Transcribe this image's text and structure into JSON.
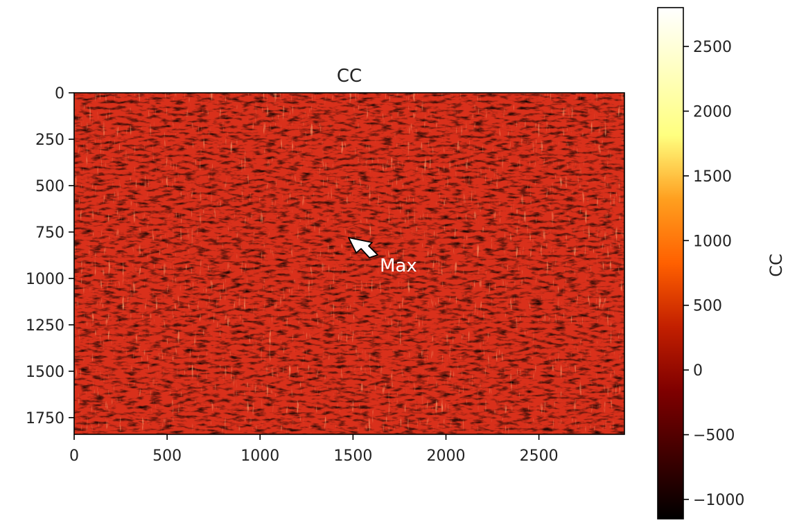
{
  "chart_data": {
    "type": "heatmap",
    "title": "CC",
    "colormap": "afmhot",
    "x_extent": [
      0,
      2960
    ],
    "y_extent": [
      0,
      1840
    ],
    "y_inverted": true,
    "x_ticks": [
      "0",
      "500",
      "1000",
      "1500",
      "2000",
      "2500"
    ],
    "x_tick_values": [
      0,
      500,
      1000,
      1500,
      2000,
      2500
    ],
    "y_ticks": [
      "0",
      "250",
      "500",
      "750",
      "1000",
      "1250",
      "1500",
      "1750"
    ],
    "y_tick_values": [
      0,
      250,
      500,
      750,
      1000,
      1250,
      1500,
      1750
    ],
    "colorbar": {
      "label": "CC",
      "vmin": -1150,
      "vmax": 2800,
      "ticks": [
        "−1000",
        "−500",
        "0",
        "500",
        "1000",
        "1500",
        "2000",
        "2500"
      ],
      "tick_values": [
        -1000,
        -500,
        0,
        500,
        1000,
        1500,
        2000,
        2500
      ]
    },
    "annotation": {
      "text": "Max",
      "point": [
        1480,
        770
      ],
      "text_position": [
        1650,
        920
      ],
      "arrow_color": "#ffffff",
      "text_color": "#ffffff"
    },
    "dominant_value_range": [
      -300,
      700
    ]
  }
}
